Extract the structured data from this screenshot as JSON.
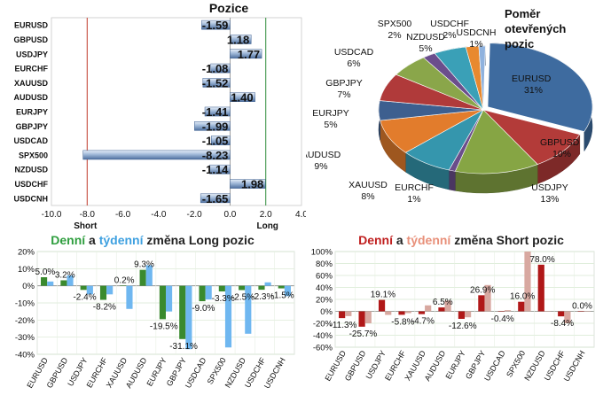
{
  "pozice": {
    "title": "Pozice",
    "type": "bar",
    "orientation": "horizontal",
    "categories": [
      "EURUSD",
      "GBPUSD",
      "USDJPY",
      "EURCHF",
      "XAUUSD",
      "AUDUSD",
      "EURJPY",
      "GBPJPY",
      "USDCAD",
      "SPX500",
      "NZDUSD",
      "USDCHF",
      "USDCNH"
    ],
    "values": [
      -1.59,
      1.18,
      1.77,
      -1.08,
      -1.52,
      1.4,
      -1.41,
      -1.99,
      -1.05,
      -8.23,
      -1.14,
      1.98,
      -1.65
    ],
    "value_labels": [
      "-1.59",
      "1.18",
      "1.77",
      "-1.08",
      "-1.52",
      "1.40",
      "-1.41",
      "-1.99",
      "-1.05",
      "-8.23",
      "-1.14",
      "1.98",
      "-1.65"
    ],
    "xlim": [
      -10,
      4
    ],
    "xticks": [
      "-10.0",
      "-8.0",
      "-6.0",
      "-4.0",
      "-2.0",
      "0.0",
      "2.0",
      "4.0"
    ],
    "short_label": "Short",
    "long_label": "Long",
    "short_line": -8,
    "long_line": 2
  },
  "pomer": {
    "title_lines": [
      "Poměr",
      "otevřených",
      "pozic"
    ],
    "type": "pie",
    "slices": [
      {
        "name": "EURUSD",
        "pct": 31,
        "label": "31%",
        "color": "#3e6b9f"
      },
      {
        "name": "GBPUSD",
        "pct": 10,
        "label": "10%",
        "color": "#b33b39"
      },
      {
        "name": "USDJPY",
        "pct": 13,
        "label": "13%",
        "color": "#86a544"
      },
      {
        "name": "EURCHF",
        "pct": 1,
        "label": "1%",
        "color": "#6a4d8b"
      },
      {
        "name": "XAUUSD",
        "pct": 8,
        "label": "8%",
        "color": "#3596ad"
      },
      {
        "name": "AUDUSD",
        "pct": 9,
        "label": "9%",
        "color": "#e27c2c"
      },
      {
        "name": "EURJPY",
        "pct": 5,
        "label": "5%",
        "color": "#3d5f8f"
      },
      {
        "name": "GBPJPY",
        "pct": 7,
        "label": "7%",
        "color": "#b03a3a"
      },
      {
        "name": "USDCAD",
        "pct": 6,
        "label": "6%",
        "color": "#8aa64a"
      },
      {
        "name": "SPX500",
        "pct": 2,
        "label": "2%",
        "color": "#6b4e8c"
      },
      {
        "name": "NZDUSD",
        "pct": 5,
        "label": "5%",
        "color": "#3aa0b7"
      },
      {
        "name": "USDCHF",
        "pct": 2,
        "label": "2%",
        "color": "#e8892f"
      },
      {
        "name": "USDCNH",
        "pct": 1,
        "label": "1%",
        "color": "#8fb2de"
      }
    ]
  },
  "long_change": {
    "title_parts": [
      "Denní",
      " a ",
      "týdenní",
      " změna Long pozic"
    ],
    "title_colors": [
      "#2e9e3e",
      "#222222",
      "#3ea0e0",
      "#222222"
    ],
    "type": "bar",
    "categories": [
      "EURUSD",
      "GBPUSD",
      "USDJPY",
      "EURCHF",
      "XAUUSD",
      "AUDUSD",
      "EURJPY",
      "GBPJPY",
      "USDCAD",
      "SPX500",
      "NZDUSD",
      "USDCHF",
      "USDCNH"
    ],
    "series": [
      {
        "name": "Denní",
        "values": [
          5.0,
          3.2,
          -2.4,
          -8.2,
          0.2,
          9.3,
          -19.5,
          -31.1,
          -9.0,
          -3.3,
          -2.5,
          -2.3,
          -1.5
        ],
        "color": "#3a8a2e"
      },
      {
        "name": "týdenní",
        "values": [
          2.5,
          6.0,
          -5.0,
          -5.0,
          -13.5,
          12.0,
          -15.0,
          -37.0,
          -8.0,
          -36.0,
          -28.0,
          2.0,
          -6.0
        ],
        "color": "#6fb7f0"
      }
    ],
    "data_labels": [
      "5.0%",
      "3.2%",
      "-2.4%",
      "-8.2%",
      "0.2%",
      "9.3%",
      "-19.5%",
      "-31.1%",
      "-9.0%",
      "-3.3%",
      "-2.5%",
      "-2.3%",
      "-1.5%"
    ],
    "ylim": [
      -40,
      20
    ],
    "yticks": [
      "-40%",
      "-30%",
      "-20%",
      "-10%",
      "0%",
      "10%",
      "20%"
    ]
  },
  "short_change": {
    "title_parts": [
      "Denní",
      " a ",
      "týdenní",
      " změna Short pozic"
    ],
    "title_colors": [
      "#c02020",
      "#222222",
      "#e8907a",
      "#222222"
    ],
    "type": "bar",
    "categories": [
      "EURUSD",
      "GBPUSD",
      "USDJPY",
      "EURCHF",
      "XAUUSD",
      "AUDUSD",
      "EURJPY",
      "GBPJPY",
      "USDCAD",
      "SPX500",
      "NZDUSD",
      "USDCHF",
      "USDCNH"
    ],
    "series": [
      {
        "name": "Denní",
        "values": [
          -11.3,
          -25.7,
          19.1,
          -5.8,
          -4.7,
          6.5,
          -12.6,
          26.9,
          -0.4,
          16.0,
          78.0,
          -8.4,
          0.0
        ],
        "color": "#b01818"
      },
      {
        "name": "týdenní",
        "values": [
          -8.0,
          -20.0,
          -6.0,
          -3.0,
          10.0,
          18.0,
          -10.0,
          44.0,
          2.0,
          100.0,
          0.0,
          -20.0,
          0.0
        ],
        "color": "#d8a8a0"
      }
    ],
    "data_labels": [
      "-11.3%",
      "-25.7%",
      "19.1%",
      "-5.8%",
      "-4.7%",
      "6.5%",
      "-12.6%",
      "26.9%",
      "-0.4%",
      "16.0%",
      "78.0%",
      "-8.4%",
      "0.0%"
    ],
    "ylim": [
      -60,
      100
    ],
    "yticks": [
      "-60%",
      "-40%",
      "-20%",
      "0%",
      "20%",
      "40%",
      "60%",
      "80%",
      "100%"
    ]
  }
}
